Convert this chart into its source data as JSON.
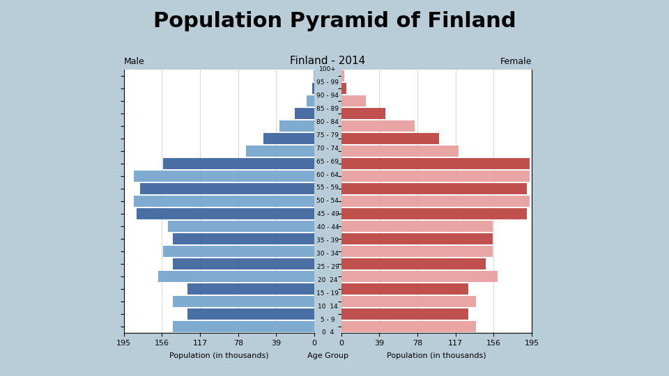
{
  "title": "Population Pyramid of Finland",
  "subtitle": "Finland - 2014",
  "age_groups": [
    "0  4",
    "5 - 9",
    "10  14",
    "15 - 19",
    "20  24",
    "25 - 29",
    "30 - 34",
    "35 - 39",
    "40 - 44",
    "45 - 49",
    "50 - 54",
    "55 - 59",
    "60 - 64",
    "65 - 69",
    "70 - 74",
    "75 - 79",
    "80 - 84",
    "85 - 89",
    "90 - 94",
    "95 - 99",
    "100+"
  ],
  "male": [
    145,
    130,
    145,
    130,
    160,
    145,
    155,
    145,
    150,
    182,
    185,
    178,
    185,
    155,
    70,
    52,
    36,
    20,
    8,
    2,
    1
  ],
  "female": [
    138,
    130,
    138,
    130,
    160,
    148,
    155,
    155,
    155,
    190,
    193,
    190,
    193,
    193,
    120,
    100,
    75,
    45,
    25,
    5,
    3
  ],
  "male_colors": [
    "#7fabd1",
    "#4a6fa5",
    "#7fabd1",
    "#4a6fa5",
    "#7fabd1",
    "#4a6fa5",
    "#7fabd1",
    "#4a6fa5",
    "#7fabd1",
    "#4a6fa5",
    "#7fabd1",
    "#4a6fa5",
    "#7fabd1",
    "#4a6fa5",
    "#7fabd1",
    "#4a6fa5",
    "#7fabd1",
    "#4a6fa5",
    "#7fabd1",
    "#4a6fa5",
    "#7fabd1"
  ],
  "female_colors": [
    "#e8a5a3",
    "#c0504d",
    "#e8a5a3",
    "#c0504d",
    "#e8a5a3",
    "#c0504d",
    "#e8a5a3",
    "#c0504d",
    "#e8a5a3",
    "#c0504d",
    "#e8a5a3",
    "#c0504d",
    "#e8a5a3",
    "#c0504d",
    "#e8a5a3",
    "#c0504d",
    "#e8a5a3",
    "#c0504d",
    "#e8a5a3",
    "#c0504d",
    "#e8a5a3"
  ],
  "xlabel_left": "Population (in thousands)",
  "xlabel_right": "Population (in thousands)",
  "xlabel_center": "Age Group",
  "label_male": "Male",
  "label_female": "Female",
  "xlim": 195,
  "xticks": [
    0,
    39,
    78,
    117,
    156,
    195
  ],
  "background_color": "#b8cdd8",
  "plot_bg": "#ffffff",
  "title_fontsize": 22,
  "subtitle_fontsize": 11,
  "bar_height": 0.85
}
